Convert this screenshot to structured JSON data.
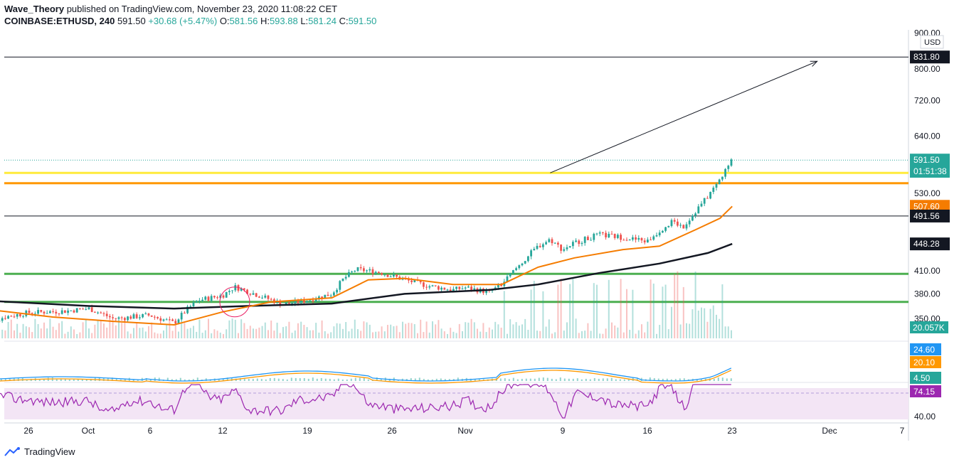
{
  "header": {
    "author": "Wave_Theory",
    "published_text": "published on TradingView.com, November 23, 2020 11:08:22 CET",
    "symbol": "COINBASE:ETHUSD, 240",
    "last": "591.50",
    "change": "+30.68 (+5.47%)",
    "o_label": "O:",
    "o": "581.56",
    "h_label": "H:",
    "h": "593.88",
    "l_label": "L:",
    "l": "581.24",
    "c_label": "C:",
    "c": "591.50"
  },
  "footer": {
    "brand": "TradingView"
  },
  "colors": {
    "up": "#26a69a",
    "down": "#ef5350",
    "ma_orange": "#f57c00",
    "ma_black": "#131722",
    "green_level": "#4caf50",
    "yellow_level": "#ffeb3b",
    "orange_level": "#ff9800",
    "rsi": "#9c27b0",
    "macd": "#2196f3",
    "signal": "#ff9800"
  },
  "chart_data": {
    "type": "candlestick",
    "interval": "240",
    "y_scale": "log",
    "ylim": [
      328,
      910
    ],
    "price_axis_ticks": [
      "900.00",
      "800.00",
      "720.00",
      "640.00",
      "530.00",
      "410.00",
      "380.00",
      "350.00"
    ],
    "price_axis_tick_values": [
      900,
      800,
      720,
      640,
      530,
      410,
      380,
      350
    ],
    "currency": "USD",
    "x_ticks": [
      "26",
      "Oct",
      "6",
      "12",
      "19",
      "26",
      "Nov",
      "9",
      "16",
      "23",
      "Dec",
      "7"
    ],
    "price_path": [
      {
        "x": "2020-09-22",
        "y": 342
      },
      {
        "x": "2020-09-24",
        "y": 352
      },
      {
        "x": "2020-09-26",
        "y": 357
      },
      {
        "x": "2020-09-29",
        "y": 359
      },
      {
        "x": "2020-10-01",
        "y": 362
      },
      {
        "x": "2020-10-03",
        "y": 350
      },
      {
        "x": "2020-10-06",
        "y": 354
      },
      {
        "x": "2020-10-08",
        "y": 345
      },
      {
        "x": "2020-10-09",
        "y": 360
      },
      {
        "x": "2020-10-10",
        "y": 372
      },
      {
        "x": "2020-10-12",
        "y": 378
      },
      {
        "x": "2020-10-13",
        "y": 389
      },
      {
        "x": "2020-10-15",
        "y": 378
      },
      {
        "x": "2020-10-17",
        "y": 367
      },
      {
        "x": "2020-10-19",
        "y": 372
      },
      {
        "x": "2020-10-21",
        "y": 380
      },
      {
        "x": "2020-10-22",
        "y": 400
      },
      {
        "x": "2020-10-23",
        "y": 412
      },
      {
        "x": "2020-10-25",
        "y": 408
      },
      {
        "x": "2020-10-27",
        "y": 398
      },
      {
        "x": "2020-10-29",
        "y": 390
      },
      {
        "x": "2020-10-31",
        "y": 385
      },
      {
        "x": "2020-11-01",
        "y": 388
      },
      {
        "x": "2020-11-03",
        "y": 382
      },
      {
        "x": "2020-11-04",
        "y": 392
      },
      {
        "x": "2020-11-05",
        "y": 410
      },
      {
        "x": "2020-11-07",
        "y": 445
      },
      {
        "x": "2020-11-08",
        "y": 455
      },
      {
        "x": "2020-11-09",
        "y": 440
      },
      {
        "x": "2020-11-10",
        "y": 450
      },
      {
        "x": "2020-11-12",
        "y": 462
      },
      {
        "x": "2020-11-14",
        "y": 458
      },
      {
        "x": "2020-11-16",
        "y": 452
      },
      {
        "x": "2020-11-17",
        "y": 468
      },
      {
        "x": "2020-11-18",
        "y": 482
      },
      {
        "x": "2020-11-19",
        "y": 475
      },
      {
        "x": "2020-11-20",
        "y": 500
      },
      {
        "x": "2020-11-21",
        "y": 525
      },
      {
        "x": "2020-11-22",
        "y": 555
      },
      {
        "x": "2020-11-23",
        "y": 591.5
      }
    ],
    "ma_fast": [
      {
        "x": "2020-09-22",
        "y": 362
      },
      {
        "x": "2020-09-28",
        "y": 352
      },
      {
        "x": "2020-10-03",
        "y": 347
      },
      {
        "x": "2020-10-08",
        "y": 343
      },
      {
        "x": "2020-10-12",
        "y": 358
      },
      {
        "x": "2020-10-16",
        "y": 370
      },
      {
        "x": "2020-10-21",
        "y": 375
      },
      {
        "x": "2020-10-24",
        "y": 398
      },
      {
        "x": "2020-10-27",
        "y": 400
      },
      {
        "x": "2020-10-31",
        "y": 392
      },
      {
        "x": "2020-11-04",
        "y": 392
      },
      {
        "x": "2020-11-07",
        "y": 415
      },
      {
        "x": "2020-11-10",
        "y": 428
      },
      {
        "x": "2020-11-14",
        "y": 440
      },
      {
        "x": "2020-11-17",
        "y": 445
      },
      {
        "x": "2020-11-20",
        "y": 470
      },
      {
        "x": "2020-11-22",
        "y": 488
      },
      {
        "x": "2020-11-23",
        "y": 507.6
      }
    ],
    "ma_slow": [
      {
        "x": "2020-09-22",
        "y": 372
      },
      {
        "x": "2020-10-01",
        "y": 365
      },
      {
        "x": "2020-10-08",
        "y": 362
      },
      {
        "x": "2020-10-14",
        "y": 365
      },
      {
        "x": "2020-10-21",
        "y": 368
      },
      {
        "x": "2020-10-27",
        "y": 380
      },
      {
        "x": "2020-11-03",
        "y": 385
      },
      {
        "x": "2020-11-07",
        "y": 392
      },
      {
        "x": "2020-11-12",
        "y": 407
      },
      {
        "x": "2020-11-17",
        "y": 420
      },
      {
        "x": "2020-11-21",
        "y": 435
      },
      {
        "x": "2020-11-23",
        "y": 448.28
      }
    ],
    "levels": [
      {
        "name": "831.80",
        "value": 831.8,
        "color": "#131722"
      },
      {
        "name": "yellow",
        "value": 567,
        "color": "#ffeb3b"
      },
      {
        "name": "orange",
        "value": 548,
        "color": "#ff9800"
      },
      {
        "name": "491.56",
        "value": 491.56,
        "color": "#131722"
      },
      {
        "name": "green-upper",
        "value": 406,
        "color": "#4caf50"
      },
      {
        "name": "green-lower",
        "value": 370,
        "color": "#4caf50"
      }
    ],
    "trend_arrow": {
      "from": {
        "x": "2020-11-08",
        "y": 567
      },
      "to": {
        "x": "2020-11-30",
        "y": 820
      }
    },
    "price_labels": [
      {
        "text": "831.80",
        "value": 831.8,
        "bg": "#131722",
        "fg": "#ffffff"
      },
      {
        "text": "591.50",
        "value": 591.5,
        "bg": "#26a69a",
        "fg": "#ffffff"
      },
      {
        "text": "01:51:38",
        "value": 570,
        "bg": "#26a69a",
        "fg": "#ffffff"
      },
      {
        "text": "507.60",
        "value": 507.6,
        "bg": "#f57c00",
        "fg": "#ffffff"
      },
      {
        "text": "491.56",
        "value": 491.56,
        "bg": "#131722",
        "fg": "#ffffff"
      },
      {
        "text": "448.28",
        "value": 448.28,
        "bg": "#131722",
        "fg": "#ffffff"
      }
    ],
    "volume_label": "20.057K",
    "macd": {
      "macd": "24.60",
      "signal": "20.10",
      "hist": "4.50"
    },
    "rsi": {
      "value": "74.15",
      "axis_ticks": [
        "40.00"
      ]
    }
  }
}
